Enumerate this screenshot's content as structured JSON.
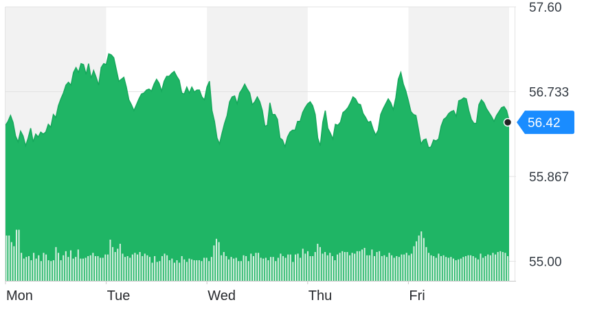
{
  "chart_data": {
    "type": "area",
    "title": "",
    "xlabel": "",
    "ylabel": "",
    "ylim": [
      54.8,
      57.6
    ],
    "grid": true,
    "legend": "none",
    "y_ticks": [
      {
        "value": 57.6,
        "label": "57.60"
      },
      {
        "value": 56.733,
        "label": "56.733"
      },
      {
        "value": 55.867,
        "label": "55.867"
      },
      {
        "value": 55.0,
        "label": "55.00"
      }
    ],
    "x_day_labels": [
      "Mon",
      "Tue",
      "Wed",
      "Thu",
      "Fri"
    ],
    "current_price": {
      "value": 56.42,
      "label": "56.42"
    },
    "series": [
      {
        "values": [
          56.39,
          56.43,
          56.49,
          56.42,
          56.28,
          56.22,
          56.33,
          56.28,
          56.18,
          56.26,
          56.36,
          56.22,
          56.3,
          56.27,
          56.32,
          56.3,
          56.32,
          56.4,
          56.37,
          56.5,
          56.47,
          56.59,
          56.66,
          56.72,
          56.8,
          56.83,
          56.8,
          56.93,
          56.98,
          56.93,
          57.02,
          57.01,
          56.91,
          57.02,
          56.87,
          56.95,
          56.88,
          56.8,
          56.98,
          57.02,
          57.01,
          57.12,
          57.11,
          57.08,
          56.96,
          56.84,
          56.86,
          56.88,
          56.78,
          56.65,
          56.6,
          56.54,
          56.6,
          56.66,
          56.71,
          56.72,
          56.75,
          56.76,
          56.74,
          56.81,
          56.86,
          56.82,
          56.74,
          56.84,
          56.89,
          56.89,
          56.92,
          56.94,
          56.89,
          56.85,
          56.72,
          56.71,
          56.78,
          56.72,
          56.78,
          56.73,
          56.75,
          56.75,
          56.68,
          56.65,
          56.78,
          56.84,
          56.54,
          56.43,
          56.26,
          56.2,
          56.31,
          56.41,
          56.49,
          56.63,
          56.68,
          56.69,
          56.61,
          56.72,
          56.76,
          56.81,
          56.76,
          56.72,
          56.6,
          56.63,
          56.68,
          56.63,
          56.54,
          56.38,
          56.39,
          56.62,
          56.5,
          56.5,
          56.45,
          56.26,
          56.24,
          56.17,
          56.27,
          56.32,
          56.34,
          56.34,
          56.43,
          56.43,
          56.52,
          56.57,
          56.61,
          56.63,
          56.59,
          56.5,
          56.26,
          56.18,
          56.42,
          56.54,
          56.36,
          56.31,
          56.25,
          56.4,
          56.39,
          56.42,
          56.52,
          56.54,
          56.57,
          56.62,
          56.68,
          56.66,
          56.61,
          56.6,
          56.51,
          56.47,
          56.42,
          56.43,
          56.35,
          56.29,
          56.34,
          56.5,
          56.56,
          56.61,
          56.66,
          56.62,
          56.55,
          56.67,
          56.86,
          56.93,
          56.81,
          56.74,
          56.64,
          56.53,
          56.5,
          56.49,
          56.35,
          56.2,
          56.24,
          56.25,
          56.16,
          56.17,
          56.24,
          56.23,
          56.25,
          56.38,
          56.45,
          56.47,
          56.51,
          56.53,
          56.54,
          56.48,
          56.64,
          56.65,
          56.67,
          56.66,
          56.54,
          56.45,
          56.41,
          56.41,
          56.6,
          56.65,
          56.62,
          56.56,
          56.52,
          56.48,
          56.43,
          56.49,
          56.53,
          56.57,
          56.58,
          56.54,
          56.44
        ]
      }
    ],
    "volume_bars": [
      0.55,
      0.55,
      0.47,
      0.42,
      0.62,
      0.62,
      0.34,
      0.27,
      0.29,
      0.3,
      0.25,
      0.34,
      0.27,
      0.31,
      0.24,
      0.34,
      0.32,
      0.25,
      0.24,
      0.25,
      0.41,
      0.34,
      0.25,
      0.31,
      0.36,
      0.29,
      0.37,
      0.27,
      0.29,
      0.38,
      0.27,
      0.27,
      0.28,
      0.3,
      0.31,
      0.34,
      0.3,
      0.3,
      0.28,
      0.28,
      0.32,
      0.32,
      0.5,
      0.41,
      0.35,
      0.39,
      0.45,
      0.33,
      0.29,
      0.3,
      0.28,
      0.32,
      0.34,
      0.32,
      0.35,
      0.3,
      0.33,
      0.31,
      0.29,
      0.22,
      0.3,
      0.23,
      0.24,
      0.3,
      0.33,
      0.31,
      0.25,
      0.27,
      0.22,
      0.25,
      0.22,
      0.3,
      0.26,
      0.23,
      0.27,
      0.26,
      0.25,
      0.25,
      0.25,
      0.24,
      0.28,
      0.28,
      0.24,
      0.29,
      0.43,
      0.51,
      0.47,
      0.31,
      0.35,
      0.3,
      0.26,
      0.29,
      0.27,
      0.28,
      0.24,
      0.24,
      0.31,
      0.3,
      0.24,
      0.33,
      0.3,
      0.34,
      0.34,
      0.28,
      0.27,
      0.28,
      0.25,
      0.29,
      0.29,
      0.24,
      0.28,
      0.33,
      0.3,
      0.28,
      0.32,
      0.32,
      0.23,
      0.32,
      0.33,
      0.28,
      0.39,
      0.33,
      0.36,
      0.3,
      0.3,
      0.35,
      0.45,
      0.41,
      0.33,
      0.35,
      0.31,
      0.34,
      0.3,
      0.25,
      0.32,
      0.34,
      0.36,
      0.35,
      0.35,
      0.31,
      0.34,
      0.33,
      0.36,
      0.36,
      0.38,
      0.4,
      0.31,
      0.31,
      0.38,
      0.3,
      0.35,
      0.36,
      0.3,
      0.31,
      0.29,
      0.34,
      0.31,
      0.28,
      0.3,
      0.29,
      0.32,
      0.32,
      0.34,
      0.31,
      0.33,
      0.42,
      0.48,
      0.55,
      0.6,
      0.52,
      0.41,
      0.34,
      0.31,
      0.3,
      0.28,
      0.33,
      0.3,
      0.31,
      0.29,
      0.28,
      0.29,
      0.27,
      0.25,
      0.26,
      0.27,
      0.29,
      0.3,
      0.31,
      0.31,
      0.3,
      0.28,
      0.26,
      0.33,
      0.28,
      0.3,
      0.32,
      0.31,
      0.34,
      0.32,
      0.35,
      0.36,
      0.35,
      0.34,
      0.3
    ],
    "colors": {
      "area_fill": "#1fb565",
      "area_line": "#16a85c",
      "volume_bar": "#d9f0e2",
      "band": "#f2f2f2",
      "grid": "#e3e3e3",
      "axis_line": "#c8c8c8",
      "price_badge": "#1a8cff",
      "marker": "#222222"
    }
  }
}
